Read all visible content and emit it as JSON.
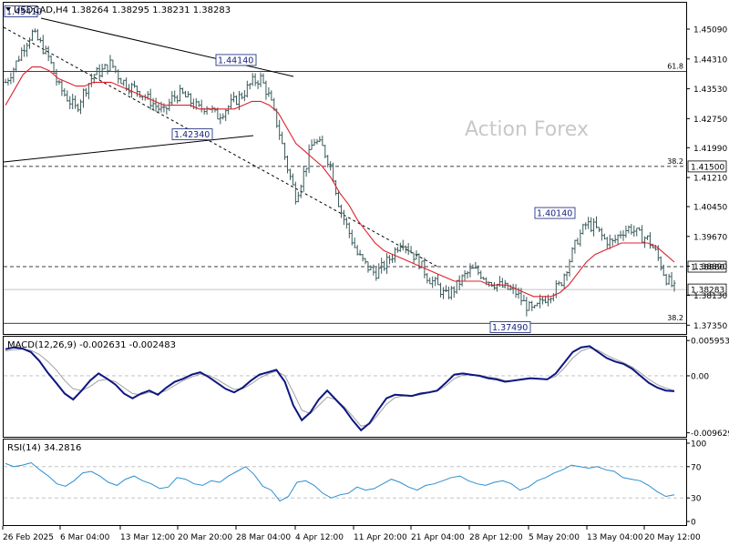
{
  "chart_data": [
    {
      "type": "line",
      "panel": "price",
      "header": "USDCAD,H4  1.38264 1.38295 1.38231 1.38283",
      "watermark": "Action Forex",
      "y_ticks": [
        "1.45090",
        "1.44310",
        "1.43530",
        "1.42750",
        "1.41990",
        "1.41210",
        "1.40450",
        "1.39670",
        "1.38890",
        "1.38130",
        "1.37350"
      ],
      "ylim": [
        1.3712,
        1.4578
      ],
      "x_ticks": [
        "26 Feb 2025",
        "6 Mar 04:00",
        "13 Mar 12:00",
        "20 Mar 20:00",
        "28 Mar 04:00",
        "4 Apr 12:00",
        "11 Apr 20:00",
        "21 Apr 04:00",
        "28 Apr 12:00",
        "5 May 20:00",
        "13 May 04:00",
        "20 May 12:00"
      ],
      "horizontal_levels": [
        {
          "label": "61.8",
          "value": 1.4398,
          "style": "solid"
        },
        {
          "label": "38.2",
          "value": 1.415,
          "style": "dashed",
          "tag": "1.41500"
        },
        {
          "label": "",
          "value": 1.3888,
          "style": "dashed",
          "tag": "1.38880"
        },
        {
          "label": "38.2",
          "value": 1.374,
          "style": "solid"
        }
      ],
      "current_price": {
        "value": 1.38283,
        "tag": "1.38283"
      },
      "annotations": [
        {
          "text": "1.45410",
          "value": 1.4541
        },
        {
          "text": "1.44140",
          "value": 1.4414
        },
        {
          "text": "1.42340",
          "value": 1.4234
        },
        {
          "text": "1.40140",
          "value": 1.4014
        },
        {
          "text": "1.37490",
          "value": 1.3749
        }
      ],
      "close_series": [
        1.437,
        1.441,
        1.446,
        1.45,
        1.447,
        1.443,
        1.436,
        1.433,
        1.43,
        1.435,
        1.439,
        1.44,
        1.442,
        1.438,
        1.436,
        1.435,
        1.433,
        1.431,
        1.429,
        1.433,
        1.434,
        1.432,
        1.43,
        1.431,
        1.428,
        1.43,
        1.432,
        1.434,
        1.437,
        1.438,
        1.433,
        1.425,
        1.415,
        1.407,
        1.414,
        1.422,
        1.42,
        1.415,
        1.404,
        1.398,
        1.392,
        1.389,
        1.387,
        1.389,
        1.392,
        1.396,
        1.393,
        1.39,
        1.386,
        1.384,
        1.381,
        1.383,
        1.386,
        1.388,
        1.387,
        1.385,
        1.384,
        1.383,
        1.382,
        1.379,
        1.377,
        1.38,
        1.382,
        1.384,
        1.39,
        1.396,
        1.4,
        1.399,
        1.396,
        1.395,
        1.398,
        1.399,
        1.397,
        1.396,
        1.392,
        1.386,
        1.383
      ],
      "ma_series": [
        1.431,
        1.435,
        1.439,
        1.441,
        1.441,
        1.44,
        1.438,
        1.437,
        1.436,
        1.436,
        1.437,
        1.437,
        1.437,
        1.436,
        1.435,
        1.434,
        1.433,
        1.432,
        1.431,
        1.431,
        1.431,
        1.431,
        1.43,
        1.43,
        1.43,
        1.43,
        1.43,
        1.431,
        1.432,
        1.432,
        1.431,
        1.429,
        1.425,
        1.421,
        1.419,
        1.417,
        1.415,
        1.412,
        1.408,
        1.405,
        1.401,
        1.398,
        1.395,
        1.393,
        1.392,
        1.391,
        1.39,
        1.389,
        1.388,
        1.387,
        1.386,
        1.385,
        1.385,
        1.385,
        1.385,
        1.384,
        1.384,
        1.384,
        1.383,
        1.382,
        1.381,
        1.381,
        1.381,
        1.382,
        1.384,
        1.387,
        1.39,
        1.392,
        1.393,
        1.394,
        1.395,
        1.395,
        1.395,
        1.395,
        1.394,
        1.392,
        1.39
      ]
    },
    {
      "type": "line",
      "panel": "macd",
      "label": "MACD(12,26,9) -0.002631 -0.002483",
      "y_ticks": [
        "0.005953",
        "0.00",
        "-0.009629"
      ],
      "ylim": [
        -0.0103,
        0.0066
      ],
      "macd_series": [
        0.0045,
        0.0048,
        0.0046,
        0.004,
        0.0025,
        0.0005,
        -0.0012,
        -0.003,
        -0.004,
        -0.0025,
        -0.0008,
        0.0004,
        -0.0005,
        -0.0015,
        -0.003,
        -0.0038,
        -0.003,
        -0.0025,
        -0.0032,
        -0.002,
        -0.001,
        -0.0005,
        0.0002,
        0.0006,
        -0.0002,
        -0.0012,
        -0.0022,
        -0.0028,
        -0.002,
        -0.0008,
        0.0002,
        0.0006,
        0.001,
        -0.001,
        -0.005,
        -0.0075,
        -0.0062,
        -0.004,
        -0.0025,
        -0.004,
        -0.0055,
        -0.0075,
        -0.0092,
        -0.008,
        -0.0058,
        -0.0038,
        -0.0032,
        -0.0033,
        -0.0034,
        -0.003,
        -0.0028,
        -0.0025,
        -0.0012,
        0.0002,
        0.0004,
        0.0002,
        0.0,
        -0.0004,
        -0.0006,
        -0.001,
        -0.0008,
        -0.0006,
        -0.0004,
        -0.0005,
        -0.0006,
        0.0004,
        0.0022,
        0.004,
        0.0048,
        0.005,
        0.004,
        0.003,
        0.0024,
        0.002,
        0.0012,
        0.0,
        -0.0012,
        -0.002,
        -0.0025,
        -0.0026
      ],
      "signal_series": [
        0.0042,
        0.0044,
        0.0045,
        0.0043,
        0.0036,
        0.0024,
        0.001,
        -0.0008,
        -0.0022,
        -0.0025,
        -0.0018,
        -0.0008,
        -0.0006,
        -0.001,
        -0.002,
        -0.003,
        -0.0032,
        -0.0028,
        -0.003,
        -0.0025,
        -0.0016,
        -0.0008,
        -0.0002,
        0.0003,
        0.0001,
        -0.0006,
        -0.0015,
        -0.0023,
        -0.0022,
        -0.0014,
        -0.0004,
        0.0003,
        0.0008,
        0.0,
        -0.0028,
        -0.0058,
        -0.0064,
        -0.005,
        -0.0036,
        -0.004,
        -0.0052,
        -0.0068,
        -0.0085,
        -0.0082,
        -0.0066,
        -0.0048,
        -0.0037,
        -0.0034,
        -0.0034,
        -0.0032,
        -0.0029,
        -0.0026,
        -0.0017,
        -0.0005,
        0.0001,
        0.0002,
        0.0001,
        -0.0002,
        -0.0004,
        -0.0008,
        -0.0008,
        -0.0007,
        -0.0005,
        -0.0005,
        -0.0006,
        -0.0001,
        0.0013,
        0.003,
        0.0042,
        0.0047,
        0.0043,
        0.0035,
        0.0028,
        0.0022,
        0.0015,
        0.0005,
        -0.0006,
        -0.0015,
        -0.0021,
        -0.0025
      ]
    },
    {
      "type": "line",
      "panel": "rsi",
      "label": "RSI(14) 34.2816",
      "y_ticks": [
        "100",
        "70",
        "30",
        "0"
      ],
      "ylim": [
        0,
        100
      ],
      "levels": [
        70,
        30
      ],
      "rsi_series": [
        74,
        70,
        72,
        75,
        66,
        58,
        48,
        45,
        52,
        62,
        64,
        58,
        50,
        46,
        54,
        58,
        52,
        48,
        42,
        44,
        56,
        54,
        48,
        46,
        52,
        50,
        58,
        64,
        70,
        60,
        45,
        40,
        26,
        32,
        50,
        52,
        46,
        36,
        30,
        34,
        36,
        44,
        40,
        42,
        48,
        54,
        50,
        44,
        40,
        46,
        48,
        52,
        56,
        58,
        52,
        48,
        46,
        50,
        52,
        48,
        40,
        44,
        52,
        56,
        62,
        66,
        72,
        70,
        68,
        70,
        66,
        64,
        56,
        54,
        52,
        46,
        38,
        32,
        34
      ]
    }
  ]
}
